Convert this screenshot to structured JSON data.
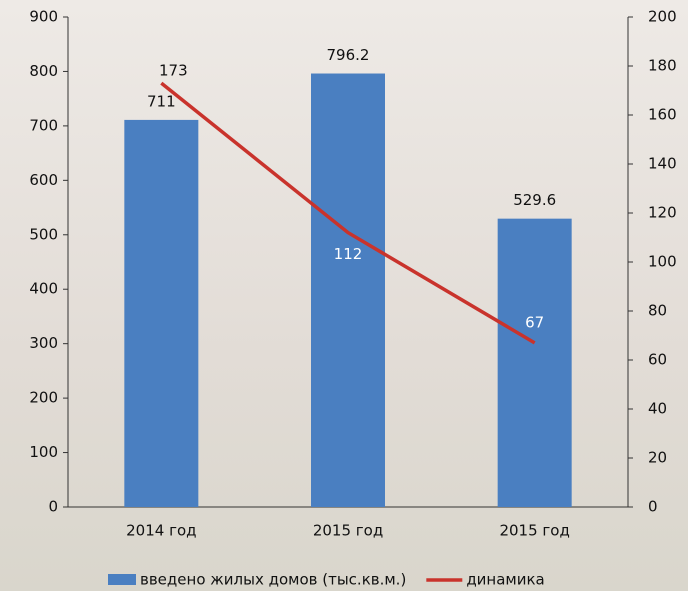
{
  "chart_data": {
    "type": "bar",
    "categories": [
      "2014 год",
      "2015 год",
      "2015 год"
    ],
    "series": [
      {
        "name": "введено жилых домов (тыс.кв.м.)",
        "type": "bar",
        "color": "#4a7fc1",
        "values": [
          711,
          796.2,
          529.6
        ]
      },
      {
        "name": "динамика",
        "type": "line",
        "axis": "y2",
        "color": "#c9332c",
        "values": [
          173,
          112,
          67
        ]
      }
    ],
    "ylim": [
      0,
      900
    ],
    "yticks": [
      0,
      100,
      200,
      300,
      400,
      500,
      600,
      700,
      800,
      900
    ],
    "y2lim": [
      0,
      200
    ],
    "y2ticks": [
      0,
      20,
      40,
      60,
      80,
      100,
      120,
      140,
      160,
      180,
      200
    ]
  }
}
